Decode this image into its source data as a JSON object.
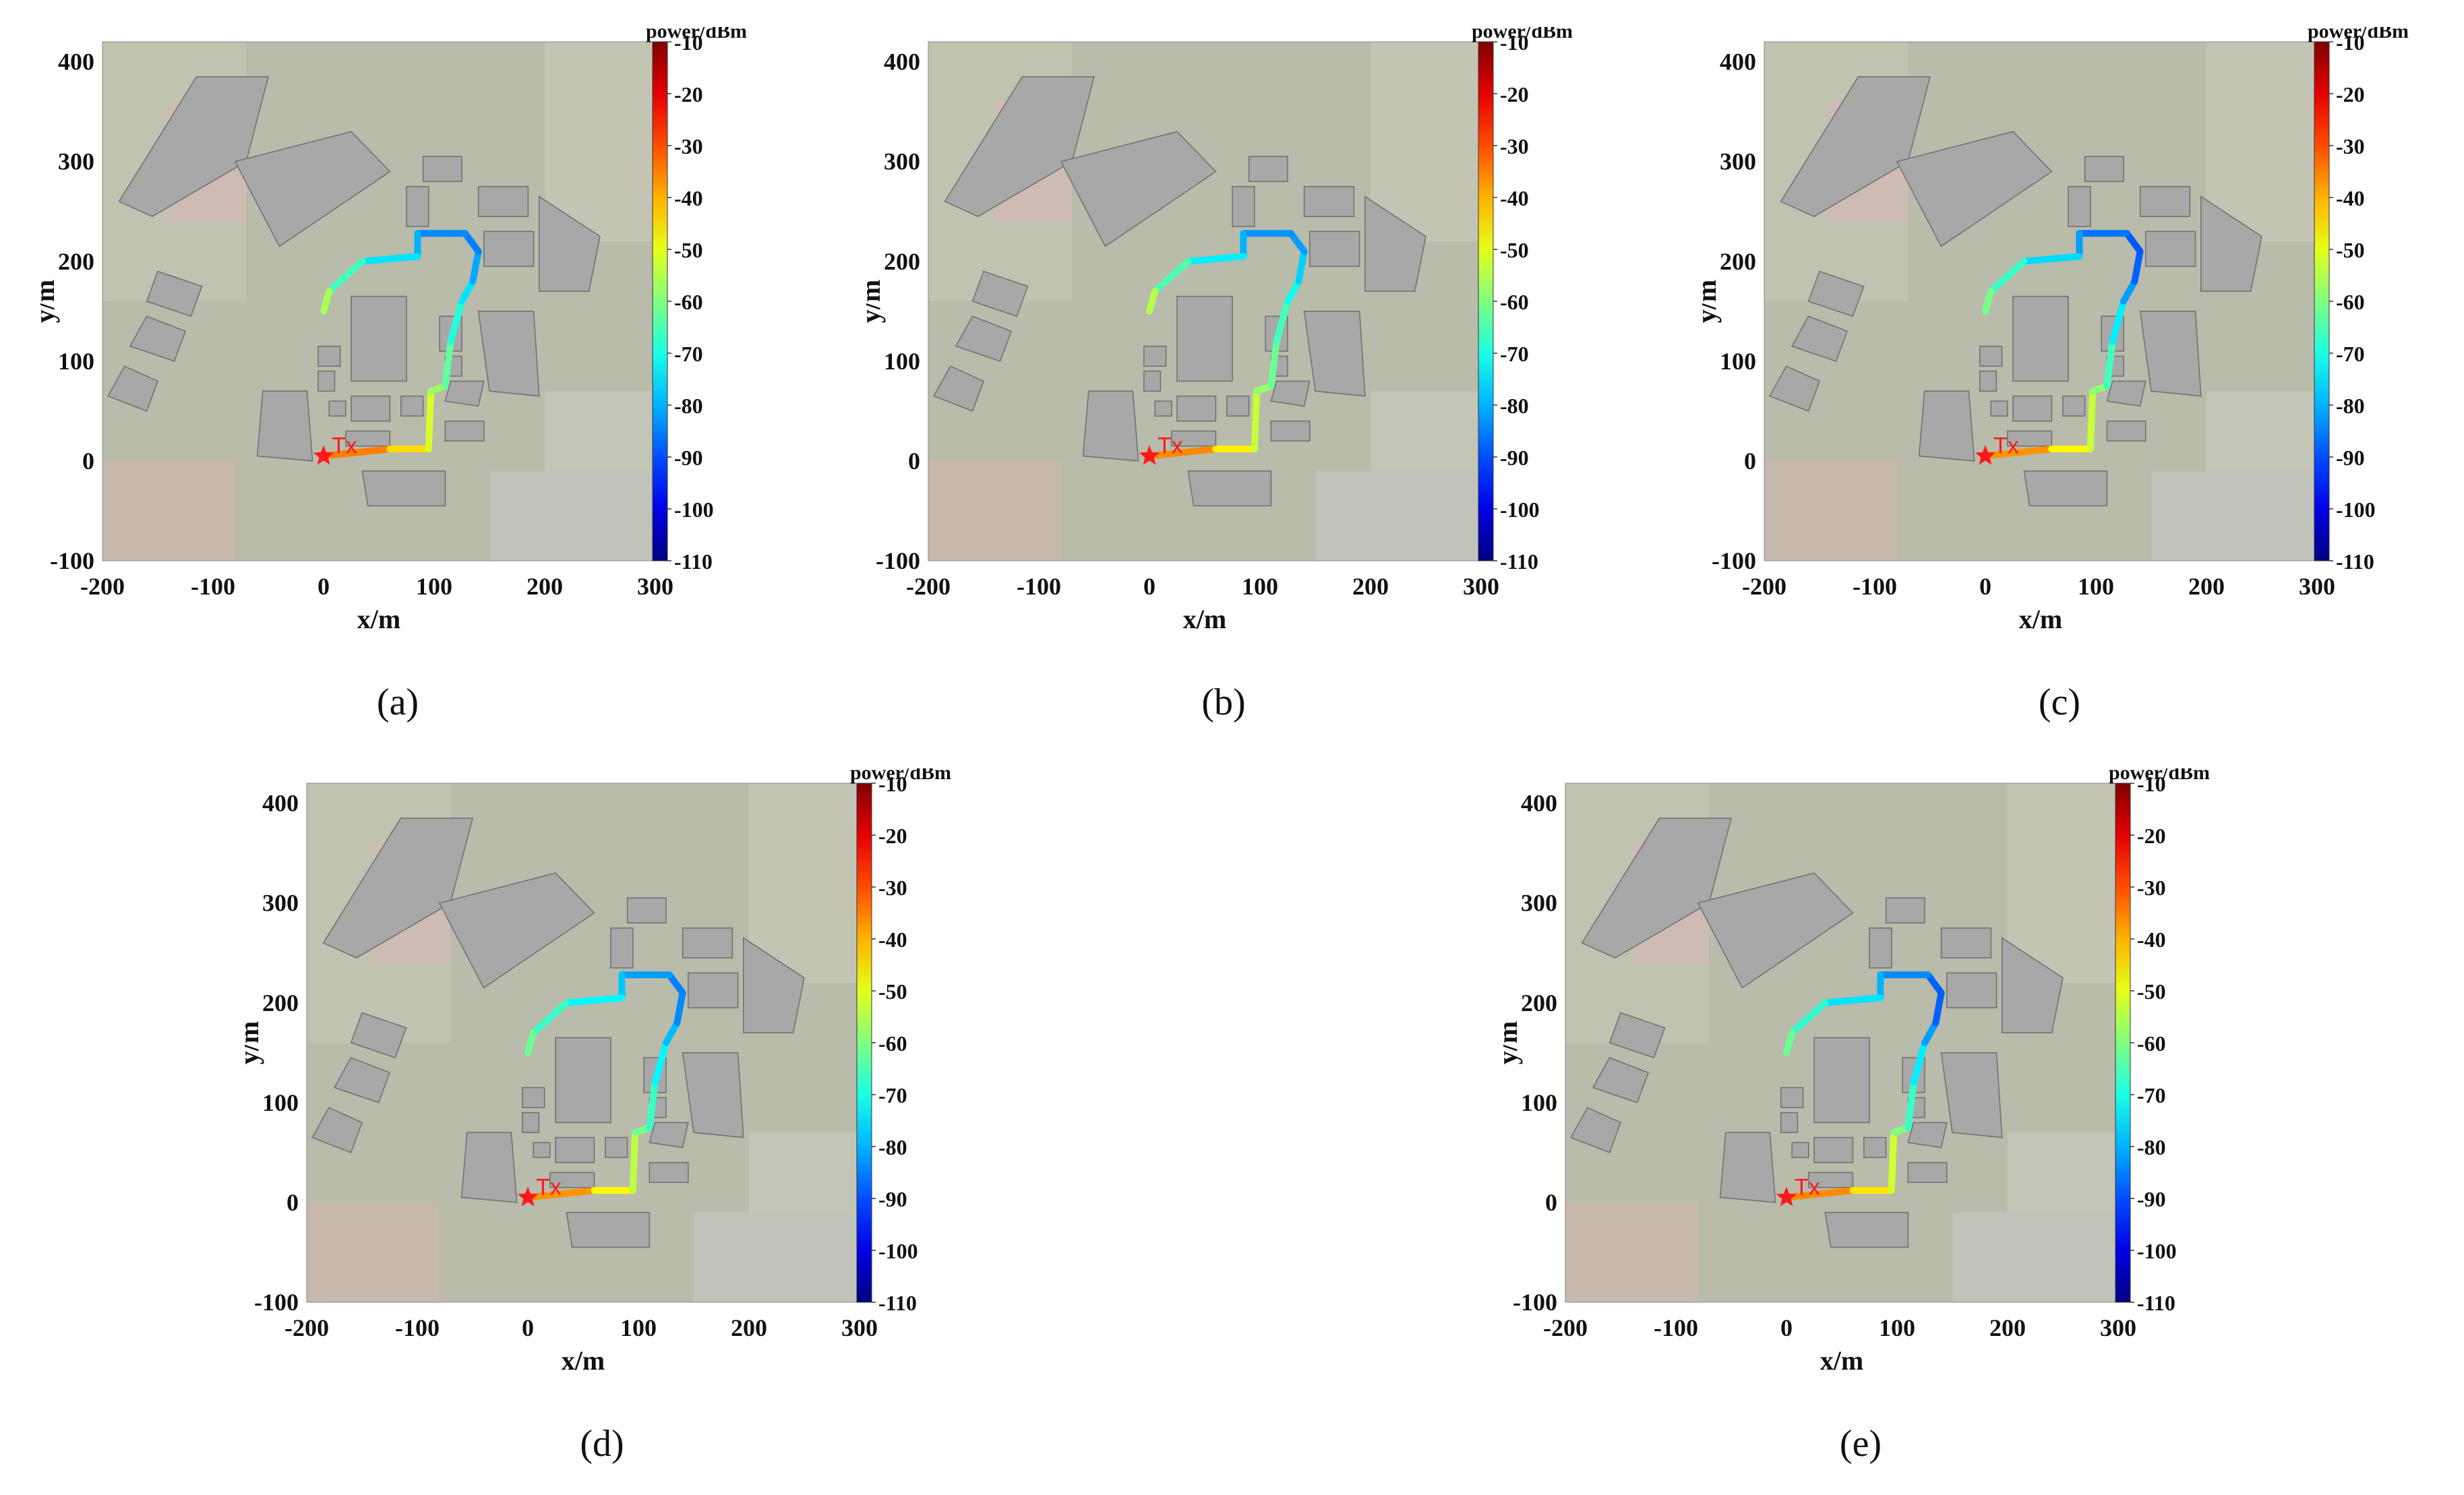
{
  "panels": [
    {
      "id": "a",
      "caption": "(a)"
    },
    {
      "id": "b",
      "caption": "(b)"
    },
    {
      "id": "c",
      "caption": "(c)"
    },
    {
      "id": "d",
      "caption": "(d)"
    },
    {
      "id": "e",
      "caption": "(e)"
    }
  ],
  "map": {
    "x_label": "x/m",
    "y_label": "y/m",
    "x_ticks": [
      "-200",
      "-100",
      "0",
      "100",
      "200",
      "300"
    ],
    "y_ticks": [
      "400",
      "300",
      "200",
      "100",
      "0",
      "-100"
    ],
    "x_range": [
      -200,
      300
    ],
    "y_range": [
      -100,
      420
    ],
    "tx_label": "Tx",
    "tx_marker_icon": "star-icon",
    "tx_position": [
      0,
      5
    ]
  },
  "colorbar": {
    "title": "power/dBm",
    "ticks": [
      "-10",
      "-20",
      "-30",
      "-40",
      "-50",
      "-60",
      "-70",
      "-80",
      "-90",
      "-100",
      "-110"
    ],
    "range": [
      -110,
      -10
    ],
    "colormap": "jet"
  },
  "colors": {
    "background": "#ffffff",
    "map_base": "#b9bbab",
    "building": "#a8a8a8",
    "tx": "#ff1a1a"
  },
  "route_points": [
    [
      0,
      5
    ],
    [
      60,
      12
    ],
    [
      95,
      12
    ],
    [
      97,
      70
    ],
    [
      110,
      75
    ],
    [
      115,
      120
    ],
    [
      125,
      160
    ],
    [
      135,
      180
    ],
    [
      140,
      210
    ],
    [
      128,
      228
    ],
    [
      85,
      228
    ],
    [
      85,
      205
    ],
    [
      35,
      200
    ],
    [
      5,
      170
    ],
    [
      0,
      150
    ]
  ],
  "route_power_dbm": [
    [
      -30,
      -40,
      -48,
      -55,
      -60,
      -66,
      -72,
      -78,
      -84,
      -86,
      -82,
      -78,
      -72,
      -60,
      -52
    ],
    [
      -30,
      -42,
      -50,
      -56,
      -60,
      -64,
      -68,
      -74,
      -80,
      -84,
      -82,
      -78,
      -70,
      -60,
      -50
    ],
    [
      -30,
      -44,
      -50,
      -56,
      -62,
      -70,
      -78,
      -86,
      -90,
      -88,
      -84,
      -80,
      -72,
      -62,
      -60
    ],
    [
      -30,
      -44,
      -50,
      -58,
      -64,
      -70,
      -76,
      -82,
      -86,
      -84,
      -80,
      -76,
      -70,
      -64,
      -60
    ],
    [
      -30,
      -42,
      -48,
      -56,
      -64,
      -70,
      -78,
      -86,
      -90,
      -86,
      -82,
      -78,
      -72,
      -64,
      -60
    ]
  ]
}
